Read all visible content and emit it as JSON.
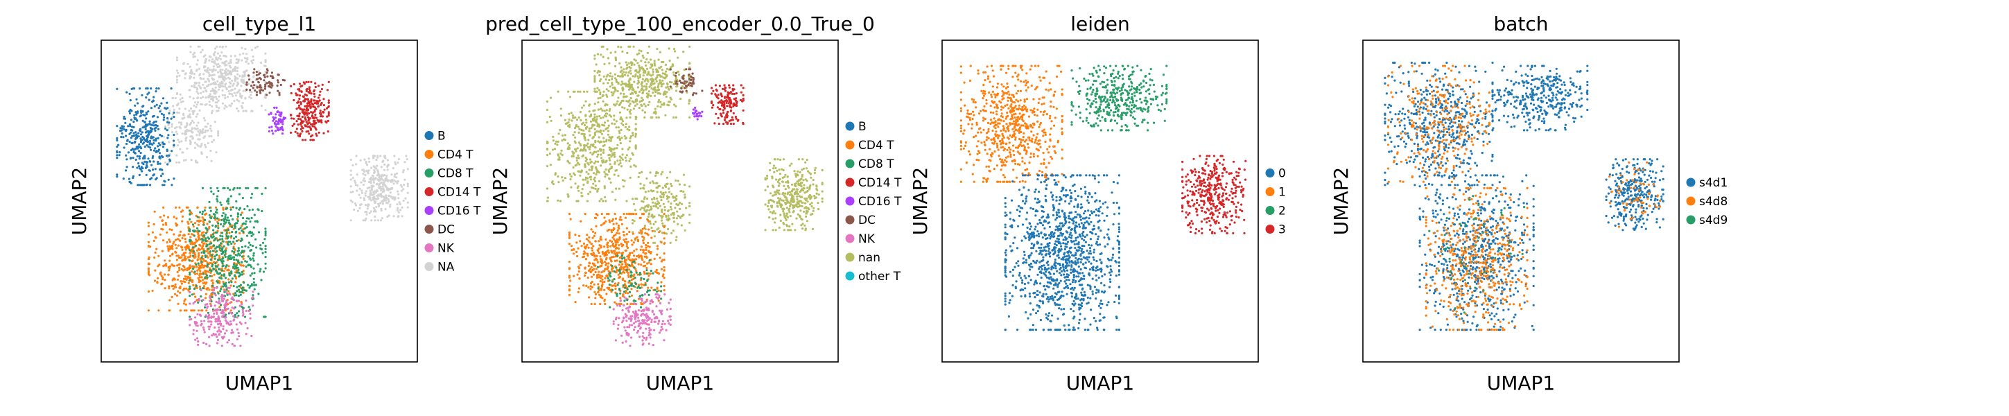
{
  "chart_data": [
    {
      "type": "scatter",
      "title": "cell_type_l1",
      "xlabel": "UMAP1",
      "ylabel": "UMAP2",
      "grid": false,
      "legend_placement": "right",
      "legend": [
        {
          "name": "B",
          "color": "#1f77b4"
        },
        {
          "name": "CD4 T",
          "color": "#ff7f0e"
        },
        {
          "name": "CD8 T",
          "color": "#279e68"
        },
        {
          "name": "CD14 T",
          "color": "#d62728"
        },
        {
          "name": "CD16 T",
          "color": "#aa40fc"
        },
        {
          "name": "DC",
          "color": "#8c564b"
        },
        {
          "name": "NK",
          "color": "#e377c2"
        },
        {
          "name": "NA",
          "color": "#d3d3d3"
        }
      ],
      "regions": [
        {
          "category": "NA",
          "x": 0.38,
          "y": 0.12,
          "rx": 0.14,
          "ry": 0.1,
          "n": 450
        },
        {
          "category": "NA",
          "x": 0.28,
          "y": 0.28,
          "rx": 0.09,
          "ry": 0.1,
          "n": 180
        },
        {
          "category": "NA",
          "x": 0.88,
          "y": 0.46,
          "rx": 0.09,
          "ry": 0.1,
          "n": 340
        },
        {
          "category": "B",
          "x": 0.14,
          "y": 0.3,
          "rx": 0.09,
          "ry": 0.15,
          "n": 380
        },
        {
          "category": "CD14 T",
          "x": 0.66,
          "y": 0.22,
          "rx": 0.06,
          "ry": 0.09,
          "n": 260
        },
        {
          "category": "DC",
          "x": 0.52,
          "y": 0.13,
          "rx": 0.06,
          "ry": 0.04,
          "n": 80
        },
        {
          "category": "CD16 T",
          "x": 0.56,
          "y": 0.25,
          "rx": 0.03,
          "ry": 0.04,
          "n": 60
        },
        {
          "category": "CD4 T",
          "x": 0.3,
          "y": 0.68,
          "rx": 0.15,
          "ry": 0.16,
          "n": 650
        },
        {
          "category": "CD8 T",
          "x": 0.4,
          "y": 0.66,
          "rx": 0.12,
          "ry": 0.2,
          "n": 520
        },
        {
          "category": "NK",
          "x": 0.38,
          "y": 0.86,
          "rx": 0.1,
          "ry": 0.09,
          "n": 220
        }
      ]
    },
    {
      "type": "scatter",
      "title": "pred_cell_type_100_encoder_0.0_True_0",
      "xlabel": "UMAP1",
      "ylabel": "UMAP2",
      "grid": false,
      "legend_placement": "right",
      "legend": [
        {
          "name": "B",
          "color": "#1f77b4"
        },
        {
          "name": "CD4 T",
          "color": "#ff7f0e"
        },
        {
          "name": "CD8 T",
          "color": "#279e68"
        },
        {
          "name": "CD14 T",
          "color": "#d62728"
        },
        {
          "name": "CD16 T",
          "color": "#aa40fc"
        },
        {
          "name": "DC",
          "color": "#8c564b"
        },
        {
          "name": "NK",
          "color": "#e377c2"
        },
        {
          "name": "nan",
          "color": "#b5bd61"
        },
        {
          "name": "other T",
          "color": "#17becf"
        }
      ],
      "regions": [
        {
          "category": "nan",
          "x": 0.38,
          "y": 0.13,
          "rx": 0.15,
          "ry": 0.11,
          "n": 480
        },
        {
          "category": "nan",
          "x": 0.22,
          "y": 0.33,
          "rx": 0.14,
          "ry": 0.17,
          "n": 520
        },
        {
          "category": "nan",
          "x": 0.44,
          "y": 0.52,
          "rx": 0.09,
          "ry": 0.11,
          "n": 220
        },
        {
          "category": "nan",
          "x": 0.86,
          "y": 0.48,
          "rx": 0.09,
          "ry": 0.11,
          "n": 340
        },
        {
          "category": "CD14 T",
          "x": 0.65,
          "y": 0.2,
          "rx": 0.05,
          "ry": 0.06,
          "n": 150
        },
        {
          "category": "DC",
          "x": 0.52,
          "y": 0.13,
          "rx": 0.05,
          "ry": 0.04,
          "n": 50
        },
        {
          "category": "CD16 T",
          "x": 0.55,
          "y": 0.23,
          "rx": 0.02,
          "ry": 0.02,
          "n": 20
        },
        {
          "category": "CD4 T",
          "x": 0.3,
          "y": 0.68,
          "rx": 0.15,
          "ry": 0.14,
          "n": 620
        },
        {
          "category": "NK",
          "x": 0.38,
          "y": 0.87,
          "rx": 0.09,
          "ry": 0.08,
          "n": 200
        },
        {
          "category": "CD8 T",
          "x": 0.34,
          "y": 0.75,
          "rx": 0.1,
          "ry": 0.08,
          "n": 90
        }
      ]
    },
    {
      "type": "scatter",
      "title": "leiden",
      "xlabel": "UMAP1",
      "ylabel": "UMAP2",
      "grid": false,
      "legend_placement": "right",
      "legend": [
        {
          "name": "0",
          "color": "#1f77b4"
        },
        {
          "name": "1",
          "color": "#ff7f0e"
        },
        {
          "name": "2",
          "color": "#279e68"
        },
        {
          "name": "3",
          "color": "#d62728"
        }
      ],
      "regions": [
        {
          "category": "1",
          "x": 0.22,
          "y": 0.26,
          "rx": 0.16,
          "ry": 0.18,
          "n": 650
        },
        {
          "category": "2",
          "x": 0.56,
          "y": 0.18,
          "rx": 0.15,
          "ry": 0.1,
          "n": 400
        },
        {
          "category": "0",
          "x": 0.38,
          "y": 0.66,
          "rx": 0.18,
          "ry": 0.24,
          "n": 1100
        },
        {
          "category": "3",
          "x": 0.86,
          "y": 0.48,
          "rx": 0.1,
          "ry": 0.12,
          "n": 380
        }
      ]
    },
    {
      "type": "scatter",
      "title": "batch",
      "xlabel": "UMAP1",
      "ylabel": "UMAP2",
      "grid": false,
      "legend_placement": "right",
      "legend": [
        {
          "name": "s4d1",
          "color": "#1f77b4"
        },
        {
          "name": "s4d8",
          "color": "#ff7f0e"
        },
        {
          "name": "s4d9",
          "color": "#279e68"
        }
      ],
      "regions": [
        {
          "category": "s4d1",
          "x": 0.24,
          "y": 0.26,
          "rx": 0.17,
          "ry": 0.19,
          "n": 500
        },
        {
          "category": "s4d8",
          "x": 0.24,
          "y": 0.26,
          "rx": 0.16,
          "ry": 0.18,
          "n": 280
        },
        {
          "category": "s4d1",
          "x": 0.56,
          "y": 0.18,
          "rx": 0.15,
          "ry": 0.1,
          "n": 350
        },
        {
          "category": "s4d1",
          "x": 0.36,
          "y": 0.66,
          "rx": 0.18,
          "ry": 0.24,
          "n": 650
        },
        {
          "category": "s4d8",
          "x": 0.36,
          "y": 0.68,
          "rx": 0.16,
          "ry": 0.22,
          "n": 480
        },
        {
          "category": "s4d9",
          "x": 0.36,
          "y": 0.66,
          "rx": 0.15,
          "ry": 0.2,
          "n": 40
        },
        {
          "category": "s4d1",
          "x": 0.86,
          "y": 0.48,
          "rx": 0.09,
          "ry": 0.11,
          "n": 300
        },
        {
          "category": "s4d8",
          "x": 0.86,
          "y": 0.48,
          "rx": 0.08,
          "ry": 0.1,
          "n": 60
        }
      ]
    }
  ]
}
